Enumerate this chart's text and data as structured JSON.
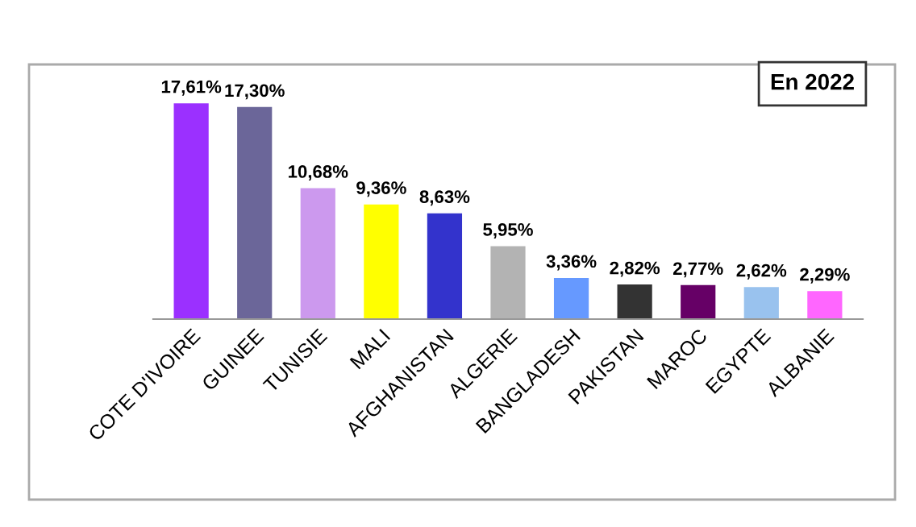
{
  "chart_data": {
    "type": "bar",
    "title": "En 2022",
    "categories": [
      "COTE D'IVOIRE",
      "GUINEE",
      "TUNISIE",
      "MALI",
      "AFGHANISTAN",
      "ALGERIE",
      "BANGLADESH",
      "PAKISTAN",
      "MAROC",
      "EGYPTE",
      "ALBANIE"
    ],
    "values": [
      17.61,
      17.3,
      10.68,
      9.36,
      8.63,
      5.95,
      3.36,
      2.82,
      2.77,
      2.62,
      2.29
    ],
    "value_labels": [
      "17,61%",
      "17,30%",
      "10,68%",
      "9,36%",
      "8,63%",
      "5,95%",
      "3,36%",
      "2,82%",
      "2,77%",
      "2,62%",
      "2,29%"
    ],
    "colors": [
      "#9b30ff",
      "#6b6699",
      "#cc99ee",
      "#ffff00",
      "#3333cc",
      "#b3b3b3",
      "#6699ff",
      "#333333",
      "#660066",
      "#99c2ee",
      "#ff66ff"
    ],
    "legend": false
  }
}
